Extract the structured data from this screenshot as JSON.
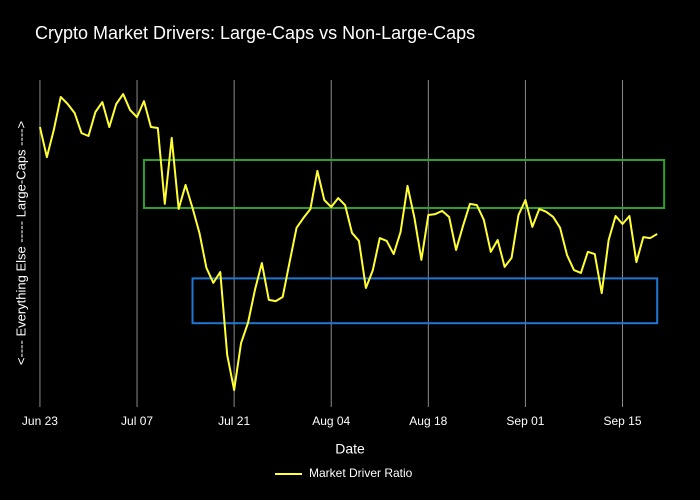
{
  "chart_data": {
    "type": "line",
    "title": "Crypto Market Drivers: Large-Caps vs Non-Large-Caps",
    "xlabel": "Date",
    "ylabel": "<---- Everything Else ----- Large-Caps ---->",
    "x": [
      "Jun 23",
      "Jun 24",
      "Jun 25",
      "Jun 26",
      "Jun 27",
      "Jun 28",
      "Jun 29",
      "Jun 30",
      "Jul 01",
      "Jul 02",
      "Jul 03",
      "Jul 04",
      "Jul 05",
      "Jul 06",
      "Jul 07",
      "Jul 08",
      "Jul 09",
      "Jul 10",
      "Jul 11",
      "Jul 12",
      "Jul 13",
      "Jul 14",
      "Jul 15",
      "Jul 16",
      "Jul 17",
      "Jul 18",
      "Jul 19",
      "Jul 20",
      "Jul 21",
      "Jul 22",
      "Jul 23",
      "Jul 24",
      "Jul 25",
      "Jul 26",
      "Jul 27",
      "Jul 28",
      "Jul 29",
      "Jul 30",
      "Jul 31",
      "Aug 01",
      "Aug 02",
      "Aug 03",
      "Aug 04",
      "Aug 05",
      "Aug 06",
      "Aug 07",
      "Aug 08",
      "Aug 09",
      "Aug 10",
      "Aug 11",
      "Aug 12",
      "Aug 13",
      "Aug 14",
      "Aug 15",
      "Aug 16",
      "Aug 17",
      "Aug 18",
      "Aug 19",
      "Aug 20",
      "Aug 21",
      "Aug 22",
      "Aug 23",
      "Aug 24",
      "Aug 25",
      "Aug 26",
      "Aug 27",
      "Aug 28",
      "Aug 29",
      "Aug 30",
      "Aug 31",
      "Sep 01",
      "Sep 02",
      "Sep 03",
      "Sep 04",
      "Sep 05",
      "Sep 06",
      "Sep 07",
      "Sep 08",
      "Sep 09",
      "Sep 10",
      "Sep 11",
      "Sep 12",
      "Sep 13",
      "Sep 14",
      "Sep 15",
      "Sep 16",
      "Sep 17",
      "Sep 18",
      "Sep 19",
      "Sep 20"
    ],
    "series": [
      {
        "name": "Market Driver Ratio",
        "color": "#ffff33",
        "values": [
          85.3,
          75.9,
          84.4,
          94.7,
          92.5,
          89.7,
          83.4,
          82.5,
          90,
          93.1,
          85.3,
          92.5,
          95.6,
          90.6,
          88.4,
          93.4,
          85.3,
          85,
          61.3,
          81.9,
          59.7,
          67.2,
          60,
          52.2,
          41.3,
          36.6,
          40,
          14.1,
          3.1,
          17.8,
          24.1,
          34.4,
          42.8,
          31.3,
          30.9,
          32.2,
          43.1,
          53.8,
          56.9,
          59.7,
          71.6,
          62.5,
          60.3,
          63.1,
          60.9,
          52.2,
          49.7,
          35,
          40.6,
          50.6,
          49.7,
          45.6,
          52.5,
          66.9,
          56.9,
          43.8,
          57.8,
          58.1,
          59.1,
          57.2,
          46.9,
          54.4,
          61.3,
          60.9,
          56.3,
          46.3,
          50,
          41.6,
          44.4,
          57.8,
          62.5,
          54.1,
          59.7,
          58.8,
          57.2,
          53.8,
          45.3,
          40.6,
          39.7,
          46.3,
          45.6,
          33.4,
          50,
          57.5,
          55,
          57.5,
          43.1,
          50.9,
          50.6,
          51.9
        ]
      }
    ],
    "xlim": [
      "Jun 22",
      "Sep 23"
    ],
    "xticks": [
      "Jun 23",
      "Jul 07",
      "Jul 21",
      "Aug 04",
      "Aug 18",
      "Sep 01",
      "Sep 15"
    ],
    "ylim": [
      0,
      100
    ],
    "grid": true,
    "legend": "bottom",
    "shapes": [
      {
        "x0": "Jul 08",
        "x1": "Sep 21",
        "y0": 60,
        "y1": 75,
        "color": "#2ca02c"
      },
      {
        "x0": "Jul 15",
        "x1": "Sep 20",
        "y0": 24,
        "y1": 38,
        "color": "#1f77d4"
      }
    ]
  }
}
